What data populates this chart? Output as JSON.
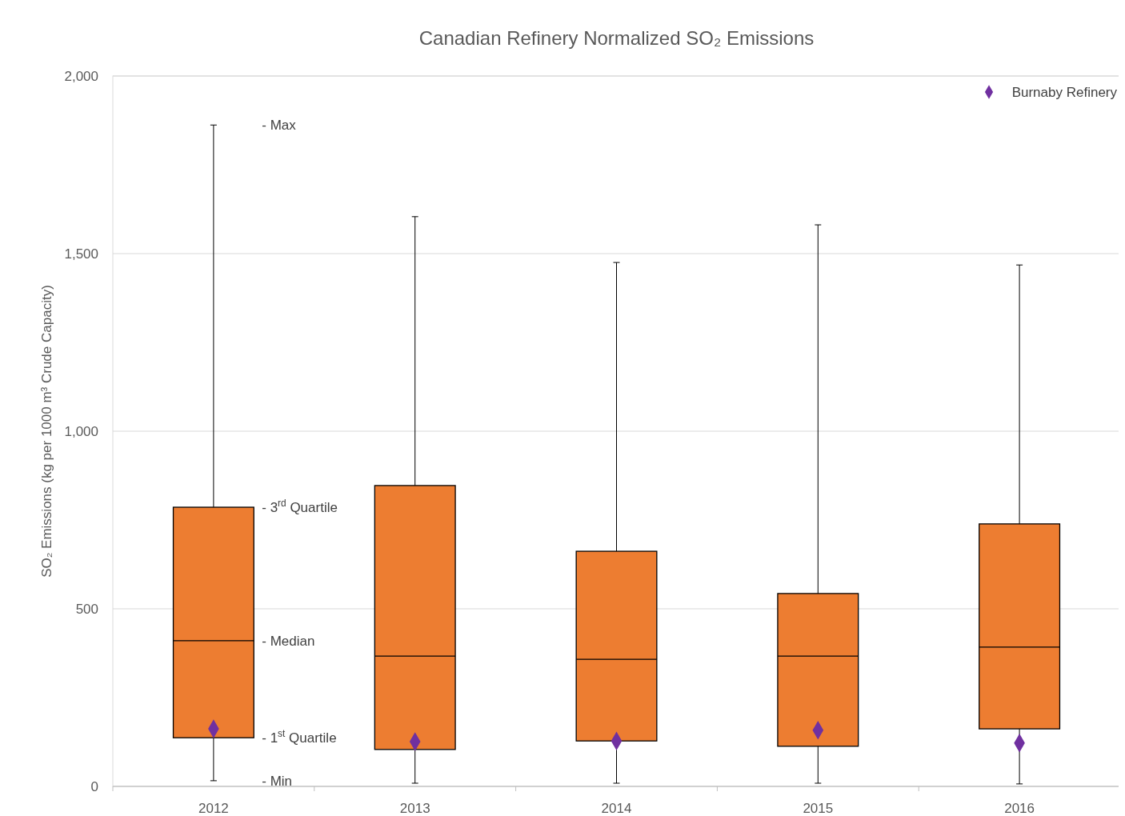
{
  "chart_data": {
    "type": "box",
    "title": "Canadian Refinery Normalized SO₂ Emissions",
    "ylabel": "SO₂ Emissions (kg per 1000 m³ Crude Capacity)",
    "categories": [
      "2012",
      "2013",
      "2014",
      "2015",
      "2016"
    ],
    "ylim": [
      0,
      2000
    ],
    "yticks": [
      0,
      {
        "value": 500,
        "label": "500"
      },
      {
        "value": 1000,
        "label": "1,000"
      },
      {
        "value": 1500,
        "label": "1,500"
      },
      {
        "value": 2000,
        "label": "2,000"
      }
    ],
    "grid": "y",
    "legend": "top right",
    "series": [
      {
        "color": "#ed7d31",
        "boxes": [
          {
            "low": 16,
            "q1": 137,
            "median": 410,
            "q3": 786,
            "high": 1862
          },
          {
            "low": 9,
            "q1": 104,
            "median": 367,
            "q3": 847,
            "high": 1604
          },
          {
            "low": 9,
            "q1": 128,
            "median": 358,
            "q3": 662,
            "high": 1475
          },
          {
            "low": 9,
            "q1": 113,
            "median": 367,
            "q3": 543,
            "high": 1581
          },
          {
            "low": 7,
            "q1": 162,
            "median": 392,
            "q3": 739,
            "high": 1468
          }
        ]
      },
      {
        "type": "scatter",
        "name": "Burnaby Refinery",
        "color": "#7030a0",
        "marker": "diamond",
        "values": [
          162,
          126,
          128,
          158,
          122
        ]
      }
    ],
    "annotations": [
      "- Max",
      "- 3$^{rd}$ Quartile",
      "- Median",
      "- 1$^{st}$ Quartile",
      "- Min"
    ]
  }
}
